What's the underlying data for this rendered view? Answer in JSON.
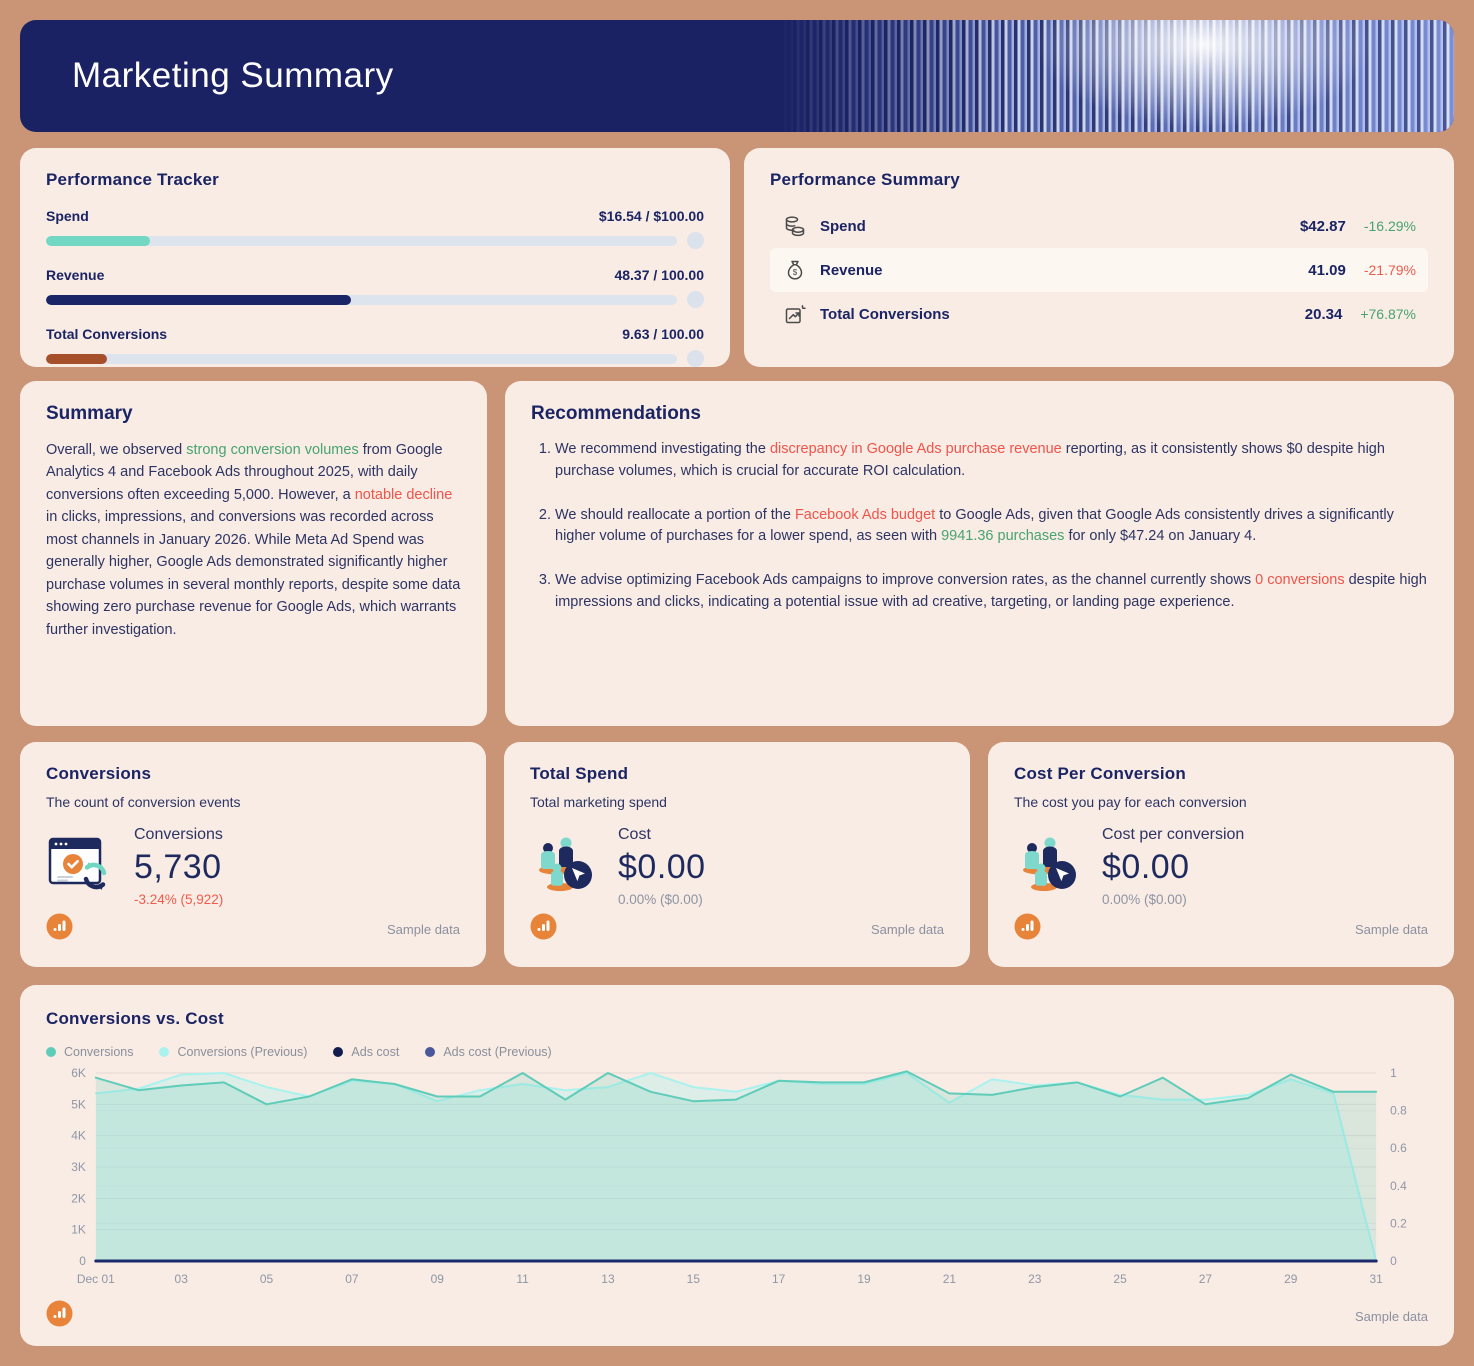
{
  "page": {
    "background": "#ca9477",
    "card_background": "#f9ece4",
    "accent_navy": "#1b2264",
    "accent_orange": "#e8833a"
  },
  "header": {
    "title": "Marketing Summary"
  },
  "performance_tracker": {
    "title": "Performance Tracker",
    "rows": [
      {
        "label": "Spend",
        "value": "$16.54 / $100.00",
        "percent": 16.54,
        "color": "#72d8c4"
      },
      {
        "label": "Revenue",
        "value": "48.37 / 100.00",
        "percent": 48.37,
        "color": "#1a2466"
      },
      {
        "label": "Total Conversions",
        "value": "9.63 / 100.00",
        "percent": 9.63,
        "color": "#a5502a"
      }
    ]
  },
  "performance_summary": {
    "title": "Performance Summary",
    "rows": [
      {
        "icon": "coins-icon",
        "label": "Spend",
        "value": "$42.87",
        "delta": "-16.29%",
        "delta_color": "#47a371"
      },
      {
        "icon": "money-bag-icon",
        "label": "Revenue",
        "value": "41.09",
        "delta": "-21.79%",
        "delta_color": "#ee5c4e"
      },
      {
        "icon": "trend-up-icon",
        "label": "Total Conversions",
        "value": "20.34",
        "delta": "+76.87%",
        "delta_color": "#47a371"
      }
    ]
  },
  "summary": {
    "title": "Summary",
    "paragraph": [
      {
        "t": "Overall, we observed "
      },
      {
        "t": "strong conversion volumes",
        "c": "green"
      },
      {
        "t": " from Google Analytics 4 and Facebook Ads throughout 2025, with daily conversions often exceeding 5,000. However, a "
      },
      {
        "t": "notable decline",
        "c": "red"
      },
      {
        "t": " in clicks, impressions, and conversions was recorded across most channels in January 2026. While Meta Ad Spend was generally higher, Google Ads demonstrated significantly higher purchase volumes in several monthly reports, despite some data showing zero purchase revenue for Google Ads, which warrants further investigation."
      }
    ]
  },
  "recommendations": {
    "title": "Recommendations",
    "items": [
      [
        {
          "t": "We recommend investigating the "
        },
        {
          "t": "discrepancy in Google Ads purchase revenue",
          "c": "red"
        },
        {
          "t": " reporting, as it consistently shows $0 despite high purchase volumes, which is crucial for accurate ROI calculation."
        }
      ],
      [
        {
          "t": "We should reallocate a portion of the "
        },
        {
          "t": "Facebook Ads budget",
          "c": "red"
        },
        {
          "t": " to Google Ads, given that Google Ads consistently drives a significantly higher volume of purchases for a lower spend, as seen with "
        },
        {
          "t": "9941.36 purchases",
          "c": "green"
        },
        {
          "t": " for only $47.24 on January 4."
        }
      ],
      [
        {
          "t": "We advise optimizing Facebook Ads campaigns to improve conversion rates, as the channel currently shows "
        },
        {
          "t": "0 conversions",
          "c": "red"
        },
        {
          "t": " despite high impressions and clicks, indicating a potential issue with ad creative, targeting, or landing page experience."
        }
      ]
    ]
  },
  "metric_cards": [
    {
      "title": "Conversions",
      "subtitle": "The count of conversion events",
      "icon": "conversions-icon",
      "label": "Conversions",
      "value": "5,730",
      "delta": "-3.24% (5,922)",
      "delta_color": "#ee5c4e",
      "footnote": "Sample data"
    },
    {
      "title": "Total Spend",
      "subtitle": "Total marketing spend",
      "icon": "people-cursor-icon",
      "label": "Cost",
      "value": "$0.00",
      "delta": "0.00% ($0.00)",
      "delta_color": "#8d93a4",
      "footnote": "Sample data"
    },
    {
      "title": "Cost Per Conversion",
      "subtitle": "The cost you pay for each conversion",
      "icon": "people-cursor-icon",
      "label": "Cost per conversion",
      "value": "$0.00",
      "delta": "0.00% ($0.00)",
      "delta_color": "#8d93a4",
      "footnote": "Sample data"
    }
  ],
  "chart": {
    "title": "Conversions vs. Cost",
    "footnote": "Sample data",
    "legend": [
      {
        "label": "Conversions",
        "color": "#5fccb9"
      },
      {
        "label": "Conversions (Previous)",
        "color": "#a9f2ee"
      },
      {
        "label": "Ads cost",
        "color": "#131c4e"
      },
      {
        "label": "Ads cost (Previous)",
        "color": "#4a5899"
      }
    ]
  },
  "chart_data": {
    "type": "area",
    "title": "Conversions vs. Cost",
    "x_days": [
      1,
      2,
      3,
      4,
      5,
      6,
      7,
      8,
      9,
      10,
      11,
      12,
      13,
      14,
      15,
      16,
      17,
      18,
      19,
      20,
      21,
      22,
      23,
      24,
      25,
      26,
      27,
      28,
      29,
      30,
      31
    ],
    "x_tick_indices": [
      0,
      2,
      4,
      6,
      8,
      10,
      12,
      14,
      16,
      18,
      20,
      22,
      24,
      26,
      28,
      30
    ],
    "x_tick_labels": [
      "Dec 01",
      "03",
      "05",
      "07",
      "09",
      "11",
      "13",
      "15",
      "17",
      "19",
      "21",
      "23",
      "25",
      "27",
      "29",
      "31"
    ],
    "left_axis": {
      "ticks": [
        "0",
        "1K",
        "2K",
        "3K",
        "4K",
        "5K",
        "6K"
      ],
      "min": 0,
      "max": 6000
    },
    "right_axis": {
      "ticks": [
        "0",
        "0.2",
        "0.4",
        "0.6",
        "0.8",
        "1"
      ],
      "min": 0,
      "max": 1
    },
    "series": [
      {
        "name": "Conversions (Previous)",
        "axis": "left",
        "color": "#a9f2ee",
        "fill": "rgba(169,242,238,0.35)",
        "width": 2,
        "values": [
          5350,
          5500,
          5950,
          6000,
          5550,
          5250,
          5750,
          5650,
          5100,
          5450,
          5650,
          5450,
          5550,
          6000,
          5550,
          5400,
          5750,
          5650,
          5650,
          6000,
          5050,
          5800,
          5600,
          5700,
          5300,
          5150,
          5150,
          5300,
          5800,
          5350,
          0
        ]
      },
      {
        "name": "Conversions",
        "axis": "left",
        "color": "#5fccb9",
        "fill": "rgba(95,204,185,0.20)",
        "width": 2,
        "values": [
          5850,
          5450,
          5600,
          5700,
          5000,
          5250,
          5800,
          5650,
          5250,
          5250,
          6000,
          5150,
          6000,
          5400,
          5100,
          5150,
          5750,
          5700,
          5700,
          6050,
          5350,
          5300,
          5550,
          5700,
          5250,
          5850,
          5000,
          5200,
          5950,
          5400,
          5400
        ]
      },
      {
        "name": "Ads cost (Previous)",
        "axis": "right",
        "color": "#4a5899",
        "width": 3,
        "values": [
          0,
          0,
          0,
          0,
          0,
          0,
          0,
          0,
          0,
          0,
          0,
          0,
          0,
          0,
          0,
          0,
          0,
          0,
          0,
          0,
          0,
          0,
          0,
          0,
          0,
          0,
          0,
          0,
          0,
          0,
          0
        ]
      },
      {
        "name": "Ads cost",
        "axis": "right",
        "color": "#1b2a6b",
        "width": 3,
        "values": [
          0,
          0,
          0,
          0,
          0,
          0,
          0,
          0,
          0,
          0,
          0,
          0,
          0,
          0,
          0,
          0,
          0,
          0,
          0,
          0,
          0,
          0,
          0,
          0,
          0,
          0,
          0,
          0,
          0,
          0,
          0
        ]
      }
    ]
  }
}
